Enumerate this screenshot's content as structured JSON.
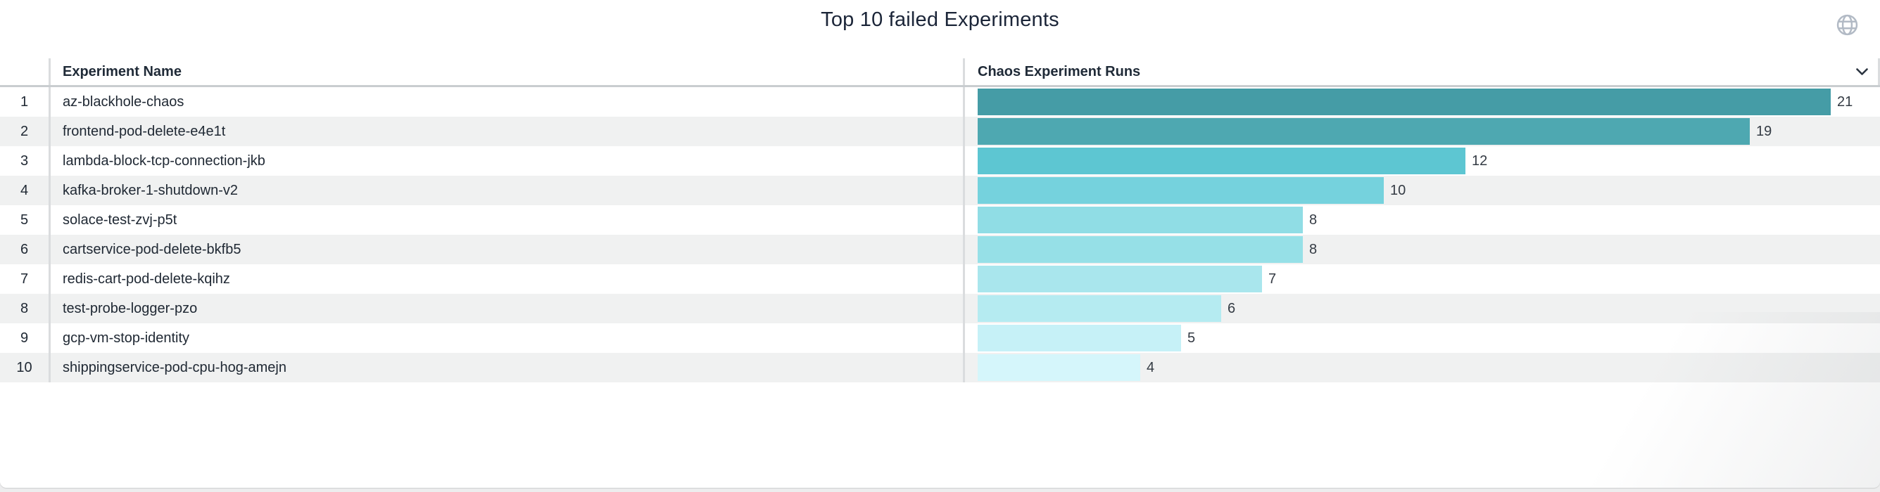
{
  "title": "Top 10 failed Experiments",
  "toolbar": {
    "globe_icon": "globe-icon",
    "sort_chevron_icon": "chevron-down-icon"
  },
  "table": {
    "columns": [
      "Experiment Name",
      "Chaos Experiment Runs"
    ],
    "rows": [
      {
        "rank": "1",
        "name": "az-blackhole-chaos",
        "runs": 21
      },
      {
        "rank": "2",
        "name": "frontend-pod-delete-e4e1t",
        "runs": 19
      },
      {
        "rank": "3",
        "name": "lambda-block-tcp-connection-jkb",
        "runs": 12
      },
      {
        "rank": "4",
        "name": "kafka-broker-1-shutdown-v2",
        "runs": 10
      },
      {
        "rank": "5",
        "name": "solace-test-zvj-p5t",
        "runs": 8
      },
      {
        "rank": "6",
        "name": "cartservice-pod-delete-bkfb5",
        "runs": 8
      },
      {
        "rank": "7",
        "name": "redis-cart-pod-delete-kqihz",
        "runs": 7
      },
      {
        "rank": "8",
        "name": "test-probe-logger-pzo",
        "runs": 6
      },
      {
        "rank": "9",
        "name": "gcp-vm-stop-identity",
        "runs": 5
      },
      {
        "rank": "10",
        "name": "shippingservice-pod-cpu-hog-amejn",
        "runs": 4
      }
    ]
  },
  "colors": {
    "bar_ramp": [
      "#459ca6",
      "#4ea8b1",
      "#5dc6d2",
      "#75d2dd",
      "#90dde5",
      "#96e0e7",
      "#a9e6ed",
      "#b5ebf1",
      "#c6f1f7",
      "#d5f6fb"
    ],
    "row_alt_band": "#f0f1f1",
    "separator": "#dadcde",
    "header_underline": "#c9cdd0",
    "title_text": "#1b2538",
    "header_text": "#1f2a37",
    "row_text": "#202934",
    "value_text": "#343b44",
    "globe_icon": "#b2bac5",
    "chevron_icon": "#2b3440"
  },
  "chart_data": {
    "type": "bar",
    "orientation": "horizontal",
    "title": "Top 10 failed Experiments",
    "xlabel": "Chaos Experiment Runs",
    "ylabel": "Experiment Name",
    "categories": [
      "az-blackhole-chaos",
      "frontend-pod-delete-e4e1t",
      "lambda-block-tcp-connection-jkb",
      "kafka-broker-1-shutdown-v2",
      "solace-test-zvj-p5t",
      "cartservice-pod-delete-bkfb5",
      "redis-cart-pod-delete-kqihz",
      "test-probe-logger-pzo",
      "gcp-vm-stop-identity",
      "shippingservice-pod-cpu-hog-amejn"
    ],
    "values": [
      21,
      19,
      12,
      10,
      8,
      8,
      7,
      6,
      5,
      4
    ],
    "value_labels_shown": true,
    "xlim": [
      0,
      21
    ],
    "grid": false,
    "legend": false,
    "bar_colors": [
      "#459ca6",
      "#4ea8b1",
      "#5dc6d2",
      "#75d2dd",
      "#90dde5",
      "#96e0e7",
      "#a9e6ed",
      "#b5ebf1",
      "#c6f1f7",
      "#d5f6fb"
    ]
  }
}
